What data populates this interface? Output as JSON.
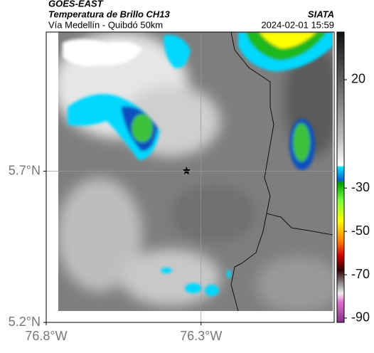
{
  "header": {
    "satellite": "GOES-EAST",
    "title": "Temperatura de Brillo CH13",
    "source": "SIATA",
    "subtitle": "Vía Medellín - Quibdó 50km",
    "datetime": "2024-02-01 15:59"
  },
  "map": {
    "xlim": [
      -76.8,
      -75.87
    ],
    "ylim": [
      5.2,
      6.16
    ],
    "xticks": [
      {
        "value": -76.8,
        "label": "76.8°W"
      },
      {
        "value": -76.3,
        "label": "76.3°W"
      }
    ],
    "yticks": [
      {
        "value": 5.7,
        "label": "5.7°N"
      },
      {
        "value": 5.2,
        "label": "5.2°N"
      }
    ]
  },
  "colorbar": {
    "lim": [
      42,
      -92
    ],
    "ticks": [
      20,
      -30,
      -50,
      -70,
      -90
    ]
  }
}
